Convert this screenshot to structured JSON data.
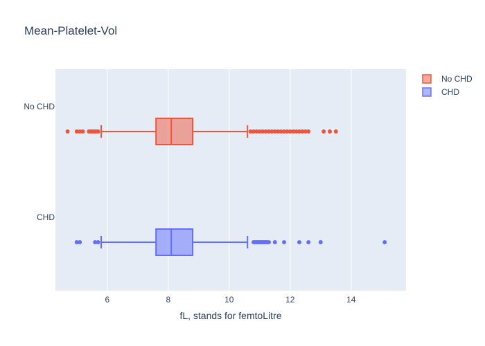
{
  "chart_data": {
    "type": "box",
    "title": "Mean-Platelet-Vol",
    "xlabel": "fL, stands for femtoLitre",
    "ylabel": "",
    "xlim": [
      4.3,
      15.8
    ],
    "xticks": [
      6,
      8,
      10,
      12,
      14
    ],
    "categories": [
      "CHD",
      "No CHD"
    ],
    "grid": true,
    "legend_position": "top-right",
    "series": [
      {
        "name": "CHD",
        "color": "#636efa",
        "min": 5.8,
        "q1": 7.6,
        "median": 8.1,
        "q3": 8.8,
        "max": 10.6,
        "outliers": [
          5.0,
          5.1,
          5.6,
          5.7,
          10.8,
          10.85,
          10.9,
          10.95,
          11.0,
          11.05,
          11.1,
          11.15,
          11.2,
          11.25,
          11.3,
          11.5,
          11.8,
          12.3,
          12.6,
          13.0,
          15.1
        ]
      },
      {
        "name": "No CHD",
        "color": "#ef553b",
        "min": 5.8,
        "q1": 7.6,
        "median": 8.1,
        "q3": 8.8,
        "max": 10.6,
        "outliers": [
          4.7,
          5.0,
          5.1,
          5.2,
          5.4,
          5.45,
          5.5,
          5.55,
          5.6,
          5.65,
          5.7,
          10.7,
          10.8,
          10.9,
          11.0,
          11.1,
          11.2,
          11.3,
          11.4,
          11.5,
          11.6,
          11.7,
          11.8,
          11.9,
          12.0,
          12.1,
          12.2,
          12.3,
          12.4,
          12.5,
          12.6,
          13.1,
          13.3,
          13.5
        ]
      }
    ]
  }
}
